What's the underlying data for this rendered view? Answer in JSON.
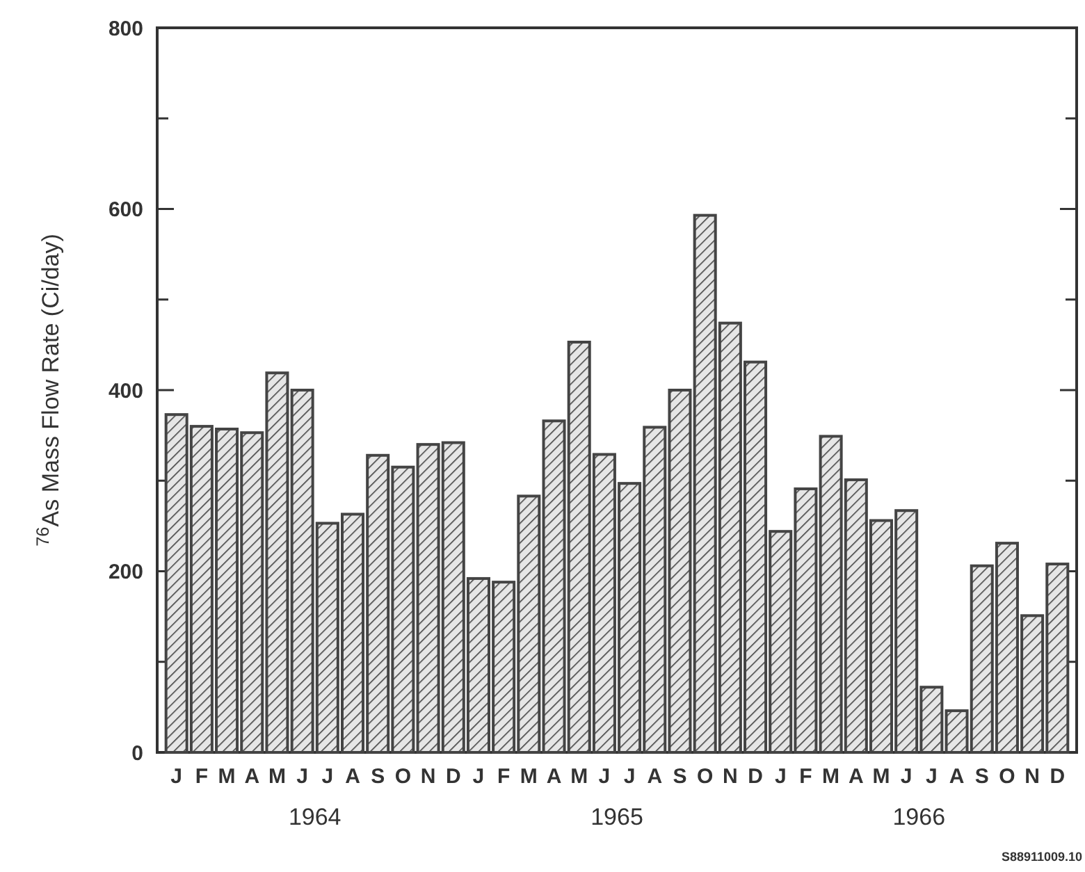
{
  "chart_data": {
    "type": "bar",
    "ylabel": "$^{76}$As Mass Flow Rate (Ci/day)",
    "categories": [
      "J",
      "F",
      "M",
      "A",
      "M",
      "J",
      "J",
      "A",
      "S",
      "O",
      "N",
      "D",
      "J",
      "F",
      "M",
      "A",
      "M",
      "J",
      "J",
      "A",
      "S",
      "O",
      "N",
      "D",
      "J",
      "F",
      "M",
      "A",
      "M",
      "J",
      "J",
      "A",
      "S",
      "O",
      "N",
      "D"
    ],
    "values": [
      373,
      360,
      357,
      353,
      419,
      400,
      253,
      263,
      328,
      315,
      340,
      342,
      192,
      188,
      283,
      366,
      453,
      329,
      297,
      359,
      400,
      593,
      474,
      431,
      244,
      291,
      349,
      301,
      256,
      267,
      72,
      46,
      206,
      231,
      151,
      208
    ],
    "color": "#444444",
    "ylim": [
      0,
      800
    ],
    "yticks": [
      0,
      {
        "value": 100,
        "label": null
      },
      200,
      {
        "value": 300,
        "label": null
      },
      400,
      {
        "value": 500,
        "label": null
      },
      600,
      {
        "value": 700,
        "label": null
      },
      800
    ],
    "annotations": [
      "1964",
      "1965",
      "1966",
      "S88911009.10"
    ]
  }
}
